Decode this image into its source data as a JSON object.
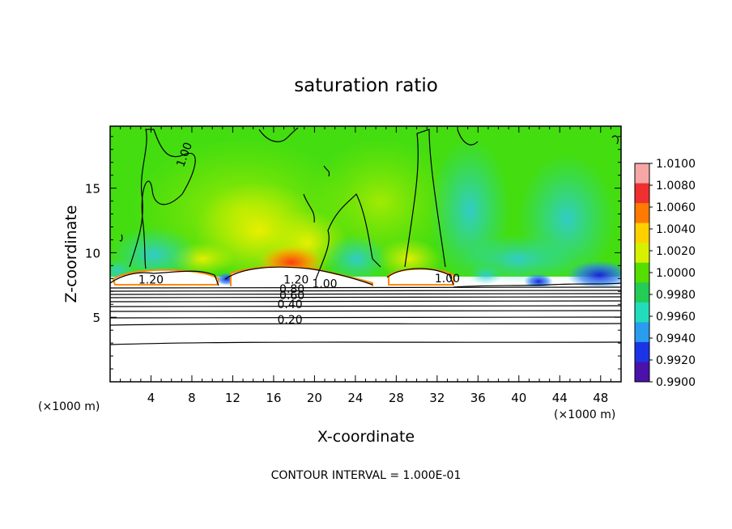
{
  "chart_data": {
    "type": "heatmap",
    "title": "saturation ratio",
    "xlabel": "X-coordinate",
    "ylabel": "Z-coordinate",
    "x_unit_left": "(×1000 m)",
    "x_unit_right": "(×1000 m)",
    "footer": "CONTOUR INTERVAL = 1.000E-01",
    "xlim": [
      0,
      50
    ],
    "ylim": [
      0,
      19.8
    ],
    "x_ticks": [
      "4",
      "8",
      "12",
      "16",
      "20",
      "24",
      "28",
      "32",
      "36",
      "40",
      "44",
      "48"
    ],
    "y_ticks": [
      "5",
      "10",
      "15"
    ],
    "colorbar": {
      "labels": [
        "1.0100",
        "1.0080",
        "1.0060",
        "1.0040",
        "1.0020",
        "1.0000",
        "0.9980",
        "0.9960",
        "0.9940",
        "0.9920",
        "0.9900"
      ],
      "colors": [
        "#f7a6a6",
        "#f03030",
        "#ff7a00",
        "#ffd000",
        "#d6f000",
        "#55dd00",
        "#22cc55",
        "#22ddbb",
        "#2a9cf0",
        "#1b35e6",
        "#4a12aa"
      ]
    },
    "contour_labels": [
      {
        "text": "1.00",
        "x": 7.6,
        "y": 17.5
      },
      {
        "text": "1.20",
        "x": 4.0,
        "y": 7.6
      },
      {
        "text": "1.20",
        "x": 18.2,
        "y": 7.6
      },
      {
        "text": "1.00",
        "x": 21.0,
        "y": 7.3
      },
      {
        "text": "1.00",
        "x": 33.0,
        "y": 7.7
      },
      {
        "text": "0.80",
        "x": 17.8,
        "y": 6.9
      },
      {
        "text": "0.60",
        "x": 17.8,
        "y": 6.4
      },
      {
        "text": "0.40",
        "x": 17.6,
        "y": 5.7
      },
      {
        "text": "0.20",
        "x": 17.6,
        "y": 4.5
      }
    ]
  }
}
